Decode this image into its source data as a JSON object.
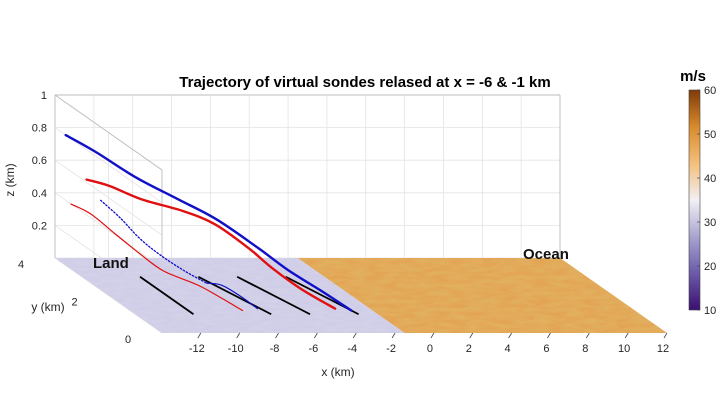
{
  "chart_data": {
    "type": "3d-line-over-surface",
    "title": "Trajectory of virtual sondes relased at x = -6 & -1 km",
    "xlabel": "x (km)",
    "ylabel": "y (km)",
    "zlabel": "z (km)",
    "xlim": [
      -14,
      12
    ],
    "ylim": [
      0,
      4
    ],
    "zlim": [
      0,
      1
    ],
    "x_ticks": [
      -12,
      -10,
      -8,
      -6,
      -4,
      -2,
      0,
      2,
      4,
      6,
      8,
      10,
      12
    ],
    "y_ticks": [
      0,
      2,
      4
    ],
    "z_ticks": [
      0.2,
      0.4,
      0.6,
      0.8,
      1
    ],
    "grid": true,
    "regions": [
      {
        "label": "Land",
        "x_range": [
          -14,
          -1.5
        ]
      },
      {
        "label": "Ocean",
        "x_range": [
          -1.5,
          12
        ]
      }
    ],
    "colorbar": {
      "label": "m/s",
      "ticks": [
        10,
        20,
        30,
        40,
        50,
        60
      ],
      "range": [
        10,
        60
      ],
      "colors": [
        "#3b0f70",
        "#6a5aa8",
        "#a8a4cf",
        "#f2f0f5",
        "#f3bf7a",
        "#d98a2c",
        "#7f3b08"
      ]
    },
    "release_lines": [
      {
        "x0": -11,
        "y0": 3,
        "x1": -11,
        "y1": 1
      },
      {
        "x0": -8,
        "y0": 3,
        "x1": -7,
        "y1": 1
      },
      {
        "x0": -6,
        "y0": 3,
        "x1": -5,
        "y1": 1
      },
      {
        "x0": -3.5,
        "y0": 3,
        "x1": -2.5,
        "y1": 1
      }
    ],
    "series": [
      {
        "color": "#1010c8",
        "width": 2.4,
        "style": "solid",
        "points": [
          [
            -14,
            3.6,
            0.8
          ],
          [
            -12.5,
            3.6,
            0.7
          ],
          [
            -10.5,
            3.5,
            0.55
          ],
          [
            -8.5,
            3.4,
            0.43
          ],
          [
            -6.8,
            3.2,
            0.33
          ],
          [
            -5.2,
            2.8,
            0.2
          ],
          [
            -4.2,
            2.4,
            0.11
          ],
          [
            -3.3,
            1.8,
            0.05
          ],
          [
            -2.6,
            1.2,
            0.0
          ]
        ]
      },
      {
        "color": "#e01010",
        "width": 2.4,
        "style": "solid",
        "points": [
          [
            -13.2,
            3.4,
            0.55
          ],
          [
            -12,
            3.4,
            0.51
          ],
          [
            -10.5,
            3.3,
            0.44
          ],
          [
            -8.5,
            3.2,
            0.38
          ],
          [
            -7,
            3.1,
            0.31
          ],
          [
            -5.7,
            2.8,
            0.2
          ],
          [
            -5,
            2.4,
            0.12
          ],
          [
            -4.2,
            1.9,
            0.05
          ],
          [
            -3.3,
            1.3,
            0.0
          ]
        ]
      },
      {
        "color": "#e01010",
        "width": 1.2,
        "style": "solid",
        "points": [
          [
            -14,
            3.4,
            0.4
          ],
          [
            -13,
            3.4,
            0.34
          ],
          [
            -12,
            3.2,
            0.24
          ],
          [
            -11,
            3.0,
            0.14
          ],
          [
            -10.2,
            2.7,
            0.07
          ],
          [
            -9,
            2.3,
            0.03
          ],
          [
            -8.5,
            1.8,
            0.01
          ],
          [
            -8.2,
            1.2,
            0.0
          ]
        ]
      },
      {
        "color": "#1010c8",
        "width": 1.3,
        "style": "dotted",
        "points": [
          [
            -12.2,
            3.6,
            0.4
          ],
          [
            -11.3,
            3.5,
            0.3
          ],
          [
            -10.6,
            3.3,
            0.2
          ],
          [
            -9.8,
            3.1,
            0.12
          ],
          [
            -9,
            2.8,
            0.06
          ],
          [
            -8.4,
            2.4,
            0.03
          ]
        ]
      },
      {
        "color": "#1010c8",
        "width": 1.2,
        "style": "solid",
        "points": [
          [
            -8.4,
            2.4,
            0.03
          ],
          [
            -7.9,
            2.2,
            0.04
          ],
          [
            -7.5,
            1.8,
            0.02
          ],
          [
            -7.3,
            1.3,
            0.0
          ]
        ]
      }
    ],
    "annotations": [
      "Land",
      "Ocean"
    ]
  }
}
